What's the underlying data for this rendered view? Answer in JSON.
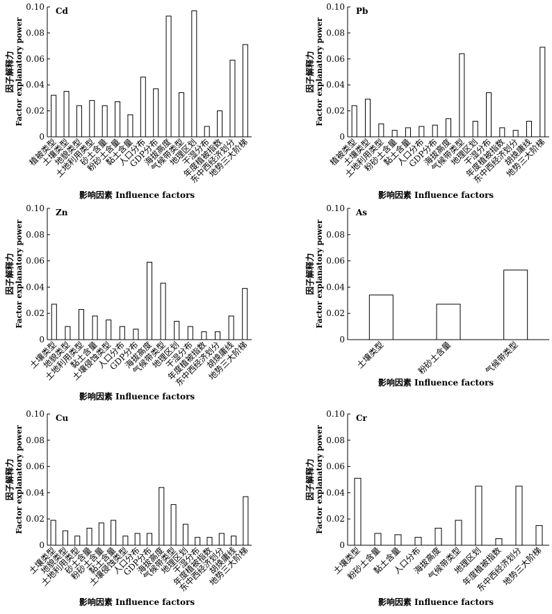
{
  "chart_data": [
    {
      "type": "bar",
      "title": "Cd",
      "ylabel_cn": "因子解释力",
      "ylabel_en": "Factor explanatory power",
      "xlabel": "影响因素 Influence factors",
      "ylim": [
        0,
        0.1
      ],
      "yticks": [
        "0",
        "0.02",
        "0.04",
        "0.06",
        "0.08",
        "0.10"
      ],
      "categories": [
        "植被类型",
        "土壤类型",
        "地貌类型",
        "土地利用类型",
        "砂土含量",
        "粉砂土含量",
        "黏土含量",
        "人口分布",
        "GDP分布",
        "海拔高度",
        "气候带类型",
        "地理区划",
        "干湿分布",
        "年度植被指数",
        "东中西经济划分",
        "地势三大阶梯"
      ],
      "values": [
        0.032,
        0.035,
        0.024,
        0.028,
        0.024,
        0.027,
        0.017,
        0.046,
        0.037,
        0.093,
        0.034,
        0.097,
        0.008,
        0.02,
        0.059,
        0.071
      ]
    },
    {
      "type": "bar",
      "title": "Pb",
      "ylabel_cn": "因子解释力",
      "ylabel_en": "Factor explanatory power",
      "xlabel": "影响因素 Influence factors",
      "ylim": [
        0,
        0.1
      ],
      "yticks": [
        "0",
        "0.02",
        "0.04",
        "0.06",
        "0.08",
        "0.10"
      ],
      "categories": [
        "植被类型",
        "土壤类型",
        "土地利用类型",
        "粉砂土含量",
        "黏土含量",
        "人口分布",
        "GDP分布",
        "海拔高度",
        "气候带类型",
        "地理区划",
        "干湿分布",
        "年度植被指数",
        "东中西经济划分",
        "胡焕庸线",
        "地势三大阶梯"
      ],
      "values": [
        0.024,
        0.029,
        0.01,
        0.005,
        0.007,
        0.008,
        0.009,
        0.014,
        0.064,
        0.012,
        0.034,
        0.007,
        0.005,
        0.012,
        0.069
      ]
    },
    {
      "type": "bar",
      "title": "Zn",
      "ylabel_cn": "因子解释力",
      "ylabel_en": "Factor explanatory power",
      "xlabel": "影响因素 Influence factors",
      "ylim": [
        0,
        0.1
      ],
      "yticks": [
        "0",
        "0.02",
        "0.04",
        "0.06",
        "0.08",
        "0.10"
      ],
      "categories": [
        "土壤类型",
        "地貌类型",
        "土地利用类型",
        "黏土含量",
        "土壤侵蚀类型",
        "人口分布",
        "GDP分布",
        "海拔高度",
        "气候带类型",
        "地理区划",
        "干湿分布",
        "年度植被指数",
        "东中西经济划分",
        "胡焕庸线",
        "地势三大阶梯"
      ],
      "values": [
        0.027,
        0.01,
        0.023,
        0.018,
        0.015,
        0.01,
        0.008,
        0.059,
        0.043,
        0.014,
        0.01,
        0.006,
        0.006,
        0.018,
        0.039
      ]
    },
    {
      "type": "bar",
      "title": "As",
      "ylabel_cn": "因子解释力",
      "ylabel_en": "Factor explanatory power",
      "xlabel": "影响因素 Influence factors",
      "ylim": [
        0,
        0.1
      ],
      "yticks": [
        "0",
        "0.02",
        "0.04",
        "0.06",
        "0.08",
        "0.10"
      ],
      "categories": [
        "土壤类型",
        "粉砂土含量",
        "气候带类型"
      ],
      "values": [
        0.034,
        0.027,
        0.053
      ]
    },
    {
      "type": "bar",
      "title": "Cu",
      "ylabel_cn": "因子解释力",
      "ylabel_en": "Factor explanatory power",
      "xlabel": "影响因素 Influence factors",
      "ylim": [
        0,
        0.1
      ],
      "yticks": [
        "0",
        "0.02",
        "0.04",
        "0.06",
        "0.08",
        "0.10"
      ],
      "categories": [
        "土壤类型",
        "地貌类型",
        "土地利用类型",
        "砂土含量",
        "粉砂土含量",
        "黏土含量",
        "土壤侵蚀类型",
        "人口分布",
        "GDP分布",
        "海拔高度",
        "气候带类型",
        "地理区划",
        "干湿分布",
        "年度植被指数",
        "东中西经济划分",
        "胡焕庸线",
        "地势三大阶梯"
      ],
      "values": [
        0.019,
        0.011,
        0.007,
        0.013,
        0.017,
        0.019,
        0.007,
        0.009,
        0.009,
        0.044,
        0.031,
        0.016,
        0.006,
        0.006,
        0.009,
        0.007,
        0.037
      ]
    },
    {
      "type": "bar",
      "title": "Cr",
      "ylabel_cn": "因子解释力",
      "ylabel_en": "Factor explanatory power",
      "xlabel": "影响因素 Influence factors",
      "ylim": [
        0,
        0.1
      ],
      "yticks": [
        "0",
        "0.02",
        "0.04",
        "0.06",
        "0.08",
        "0.10"
      ],
      "categories": [
        "土壤类型",
        "粉砂土含量",
        "黏土含量",
        "人口分布",
        "海拔高度",
        "气候带类型",
        "地理区划",
        "年度植被指数",
        "东中西经济划分",
        "地势三大阶梯"
      ],
      "values": [
        0.051,
        0.009,
        0.008,
        0.006,
        0.013,
        0.019,
        0.045,
        0.005,
        0.045,
        0.015
      ]
    }
  ]
}
